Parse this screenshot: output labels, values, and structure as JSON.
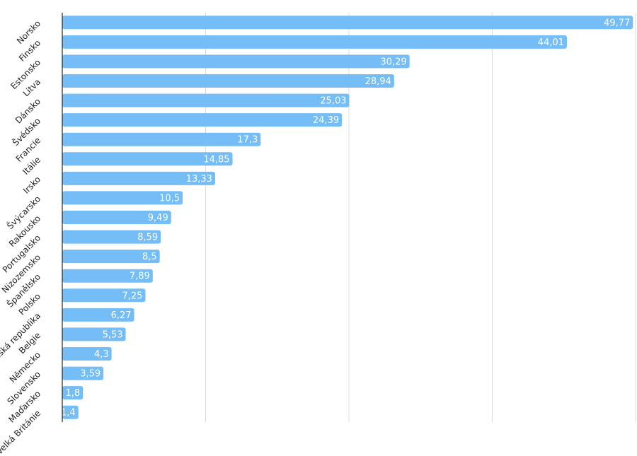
{
  "chart_data": {
    "type": "bar",
    "orientation": "horizontal",
    "categories": [
      "Norsko",
      "Finsko",
      "Estonsko",
      "Litva",
      "Dánsko",
      "Švédsko",
      "Francie",
      "Itálie",
      "Irsko",
      "Švýcarsko",
      "Rakousko",
      "Portugalsko",
      "Nizozemsko",
      "Španělsko",
      "Polsko",
      "Česká republika",
      "Belgie",
      "Německo",
      "Slovensko",
      "Maďarsko",
      "Velká Británie"
    ],
    "values": [
      49.77,
      44.01,
      30.29,
      28.94,
      25.03,
      24.39,
      17.3,
      14.85,
      13.33,
      10.5,
      9.49,
      8.59,
      8.5,
      7.89,
      7.25,
      6.27,
      5.53,
      4.3,
      3.59,
      1.8,
      1.4
    ],
    "value_labels": [
      "49,77",
      "44,01",
      "30,29",
      "28,94",
      "25,03",
      "24,39",
      "17,3",
      "14,85",
      "13,33",
      "10,5",
      "9,49",
      "8,59",
      "8,5",
      "7,89",
      "7,25",
      "6,27",
      "5,53",
      "4,3",
      "3,59",
      "1,8",
      "1,4"
    ],
    "xlim": [
      0,
      50
    ],
    "grid_values": [
      12.5,
      25,
      37.5,
      50
    ],
    "grid": true,
    "bar_color": "#74bdf6",
    "title": "",
    "xlabel": "",
    "ylabel": ""
  }
}
